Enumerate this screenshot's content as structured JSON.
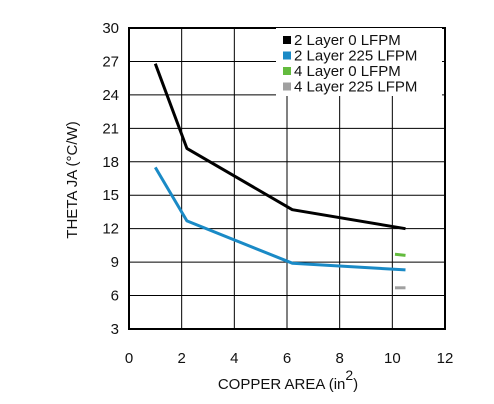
{
  "chart_data": {
    "type": "line",
    "xlabel": "COPPER AREA (in",
    "xlabel_superscript": "2",
    "xlabel_close": ")",
    "ylabel": "THETA JA (°C/W)",
    "xlim": [
      0,
      12
    ],
    "ylim": [
      3,
      30
    ],
    "x_ticks": [
      0,
      2,
      4,
      6,
      8,
      10,
      12
    ],
    "y_ticks": [
      3,
      6,
      9,
      12,
      15,
      18,
      21,
      24,
      27,
      30
    ],
    "grid": true,
    "legend_position": "top-right",
    "series": [
      {
        "name": "2 Layer 0 LFPM",
        "color": "#000000",
        "x": [
          1.0,
          2.2,
          6.2,
          10.5
        ],
        "y": [
          26.8,
          19.2,
          13.7,
          12.0
        ]
      },
      {
        "name": "2 Layer 225 LFPM",
        "color": "#1a8ac6",
        "x": [
          1.0,
          2.2,
          6.2,
          10.5
        ],
        "y": [
          17.5,
          12.7,
          8.9,
          8.3
        ]
      },
      {
        "name": "4 Layer 0 LFPM",
        "color": "#63bb3e",
        "x": [
          10.1,
          10.5
        ],
        "y": [
          9.7,
          9.6
        ]
      },
      {
        "name": "4 Layer 225 LFPM",
        "color": "#a0a0a0",
        "x": [
          10.1,
          10.5
        ],
        "y": [
          6.7,
          6.7
        ]
      }
    ]
  }
}
